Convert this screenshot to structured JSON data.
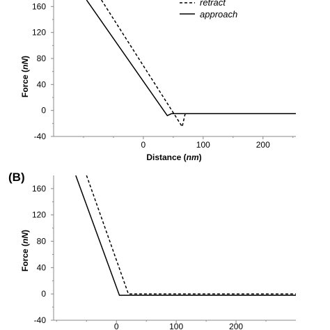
{
  "chart_data": [
    {
      "type": "line",
      "panel_label": "",
      "xlabel": "Distance",
      "xlabel_unit": "nm",
      "ylabel": "Force",
      "ylabel_unit": "nN",
      "xlim": [
        -150,
        255
      ],
      "ylim": [
        -40,
        170
      ],
      "xticks": [
        0,
        100,
        200
      ],
      "yticks": [
        -40,
        0,
        40,
        80,
        120,
        160
      ],
      "legend_location": "top-right",
      "series": [
        {
          "name": "retract",
          "style": "dashed",
          "points": [
            [
              -70,
              170
            ],
            [
              65,
              -25
            ],
            [
              70,
              -5
            ],
            [
              255,
              -5
            ]
          ]
        },
        {
          "name": "approach",
          "style": "solid",
          "points": [
            [
              -95,
              170
            ],
            [
              40,
              -8
            ],
            [
              47,
              -5
            ],
            [
              255,
              -5
            ]
          ]
        }
      ]
    },
    {
      "type": "line",
      "panel_label": "(B)",
      "xlabel": "",
      "ylabel": "Force",
      "ylabel_unit": "nN",
      "xlim": [
        -105,
        300
      ],
      "ylim": [
        -40,
        180
      ],
      "xticks": [
        0,
        100,
        200
      ],
      "yticks": [
        -40,
        0,
        40,
        80,
        120,
        160
      ],
      "series": [
        {
          "name": "",
          "style": "dashed",
          "points": [
            [
              -50,
              180
            ],
            [
              20,
              0
            ],
            [
              300,
              0
            ]
          ]
        },
        {
          "name": "",
          "style": "solid",
          "points": [
            [
              -68,
              180
            ],
            [
              5,
              -2
            ],
            [
              300,
              -2
            ]
          ]
        }
      ]
    }
  ],
  "legend": {
    "retract_label": "retract",
    "approach_label": "approach"
  }
}
